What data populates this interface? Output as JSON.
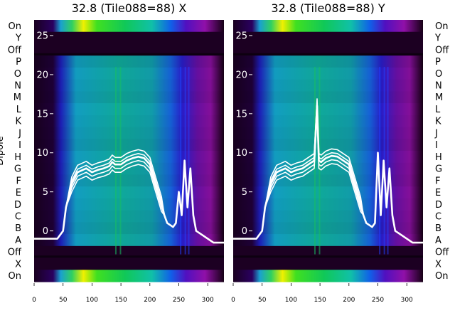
{
  "chart_data": [
    {
      "type": "heatmap",
      "title": "32.8 (Tile088=88) X",
      "ylabel": "Dipole",
      "x_ticks": [
        0,
        50,
        100,
        150,
        200,
        250,
        300
      ],
      "xlim": [
        0,
        328
      ],
      "y_ticks": [
        0,
        5,
        10,
        15,
        20,
        25
      ],
      "ylim": [
        -6.5,
        27
      ],
      "dipole_labels_top_to_bottom": [
        "On",
        "Y",
        "Off",
        "P",
        "O",
        "N",
        "M",
        "L",
        "K",
        "J",
        "I",
        "H",
        "G",
        "F",
        "E",
        "D",
        "C",
        "B",
        "A",
        "Off",
        "X",
        "On"
      ],
      "spectrum": {
        "x": [
          0,
          40,
          50,
          55,
          65,
          75,
          90,
          100,
          110,
          120,
          130,
          135,
          140,
          150,
          160,
          170,
          180,
          190,
          200,
          210,
          220,
          225,
          230,
          240,
          245,
          250,
          255,
          260,
          265,
          270,
          275,
          280,
          290,
          300,
          310,
          320,
          328
        ],
        "y": [
          -1,
          -1,
          0,
          3,
          6,
          7.5,
          8,
          7.5,
          7.8,
          8,
          8.3,
          8.8,
          8.5,
          8.5,
          9,
          9.3,
          9.5,
          9.3,
          8.5,
          6,
          3.5,
          2,
          1,
          0.5,
          1,
          5,
          2,
          9,
          3,
          8,
          2,
          0,
          -0.5,
          -1,
          -1.5,
          -1.5,
          -1.5
        ]
      }
    },
    {
      "type": "heatmap",
      "title": "32.8 (Tile088=88) Y",
      "ylabel": "",
      "x_ticks": [
        0,
        50,
        100,
        150,
        200,
        250,
        300
      ],
      "xlim": [
        0,
        328
      ],
      "y_ticks": [
        0,
        5,
        10,
        15,
        20,
        25
      ],
      "ylim": [
        -6.5,
        27
      ],
      "dipole_labels_top_to_bottom": [
        "On",
        "Y",
        "Off",
        "P",
        "O",
        "N",
        "M",
        "L",
        "K",
        "J",
        "I",
        "H",
        "G",
        "F",
        "E",
        "D",
        "C",
        "B",
        "A",
        "Off",
        "X",
        "On"
      ],
      "spectrum": {
        "x": [
          0,
          40,
          50,
          55,
          65,
          75,
          90,
          100,
          110,
          120,
          130,
          140,
          145,
          148,
          152,
          160,
          170,
          180,
          190,
          200,
          210,
          220,
          225,
          230,
          240,
          245,
          250,
          255,
          260,
          265,
          270,
          275,
          280,
          290,
          300,
          310,
          320,
          328
        ],
        "y": [
          -1,
          -1,
          0,
          3,
          6,
          7.5,
          8,
          7.5,
          7.8,
          8,
          8.5,
          9,
          16,
          9,
          8.8,
          9.3,
          9.6,
          9.5,
          9,
          8.5,
          6,
          3.5,
          2,
          1,
          0.5,
          1,
          10,
          2,
          9,
          3,
          8,
          2,
          0,
          -0.5,
          -1,
          -1.5,
          -1.5,
          -1.5
        ]
      }
    }
  ]
}
